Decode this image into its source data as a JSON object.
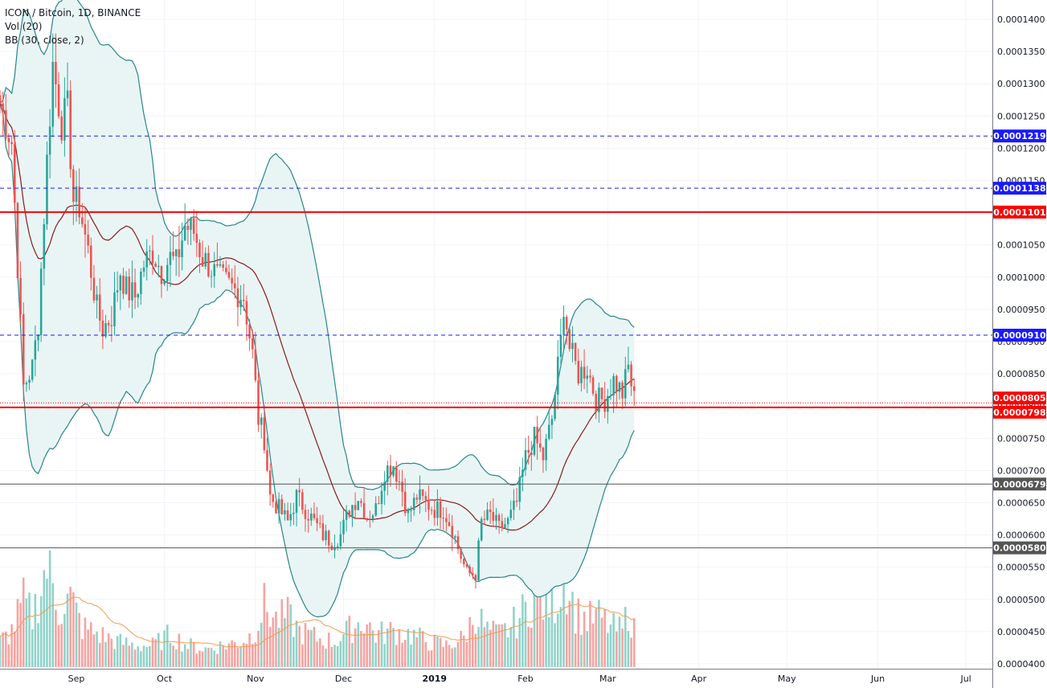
{
  "legend": {
    "title": "ICON / Bitcoin, 1D, BINANCE",
    "volume": "Vol (20)",
    "bollinger": "BB (30, close, 2)"
  },
  "colors": {
    "up": "#26a69a",
    "down": "#ef5350",
    "bb_band": "#26868a",
    "bb_basis": "#8b1a1a",
    "bb_fill": "#e9f5f5",
    "vol_up": "#8fd3c9",
    "vol_down": "#f6a3a0",
    "vol_ma": "#f39c4a",
    "blue_level": "#1a1aff",
    "red_level": "#ff0000",
    "gray_level": "#555555",
    "grid": "#f0f3fa"
  },
  "chart_data": {
    "type": "candlestick",
    "title": "ICON / Bitcoin, 1D, BINANCE",
    "ylim": [
      4e-05,
      0.000142
    ],
    "y_ticks": [
      "0.0001400",
      "0.0001350",
      "0.0001300",
      "0.0001250",
      "0.0001200",
      "0.0001150",
      "0.0001100",
      "0.0001050",
      "0.0001000",
      "0.0000950",
      "0.0000900",
      "0.0000850",
      "0.0000800",
      "0.0000750",
      "0.0000700",
      "0.0000650",
      "0.0000600",
      "0.0000550",
      "0.0000500",
      "0.0000450",
      "0.0000400"
    ],
    "y_tick_values": [
      0.00014,
      0.000135,
      0.00013,
      0.000125,
      0.00012,
      0.000115,
      0.00011,
      0.000105,
      0.0001,
      9.5e-05,
      9e-05,
      8.5e-05,
      8e-05,
      7.5e-05,
      7e-05,
      6.5e-05,
      6e-05,
      5.5e-05,
      5e-05,
      4.5e-05,
      4e-05
    ],
    "x_ticks": [
      "Sep",
      "Oct",
      "Nov",
      "Dec",
      "2019",
      "Feb",
      "Mar",
      "Apr",
      "May",
      "Jun",
      "Jul"
    ],
    "x_tick_days": [
      18,
      48,
      79,
      109,
      140,
      171,
      199,
      230,
      260,
      291,
      321
    ],
    "x_range_days": [
      -8,
      330
    ],
    "price_levels": [
      {
        "label": "0.0001219",
        "value": 0.0001219,
        "style": "blue-dashed"
      },
      {
        "label": "0.0001138",
        "value": 0.0001138,
        "style": "blue-dashed"
      },
      {
        "label": "0.0001101",
        "value": 0.0001101,
        "style": "red-solid"
      },
      {
        "label": "0.0000910",
        "value": 9.1e-05,
        "style": "blue-dashed"
      },
      {
        "label": "0.0000805",
        "value": 8.05e-05,
        "style": "red-dotted"
      },
      {
        "label": "0.0000798",
        "value": 7.98e-05,
        "style": "red-solid"
      },
      {
        "label": "0.0000679",
        "value": 6.79e-05,
        "style": "gray-solid"
      },
      {
        "label": "0.0000580",
        "value": 5.8e-05,
        "style": "gray-solid"
      }
    ],
    "close_anchors": [
      [
        -8,
        0.000127
      ],
      [
        -4,
        0.000121
      ],
      [
        0,
        8.3e-05
      ],
      [
        3,
        8.6e-05
      ],
      [
        5,
        9.3e-05
      ],
      [
        8,
        0.000118
      ],
      [
        10,
        0.000133
      ],
      [
        13,
        0.000124
      ],
      [
        15,
        0.000126
      ],
      [
        17,
        0.000112
      ],
      [
        19,
        0.000111
      ],
      [
        22,
        0.000104
      ],
      [
        25,
        9.5e-05
      ],
      [
        27,
        9.2e-05
      ],
      [
        30,
        9.4e-05
      ],
      [
        33,
        0.000101
      ],
      [
        35,
        9.8e-05
      ],
      [
        38,
        9.7e-05
      ],
      [
        41,
        0.000102
      ],
      [
        44,
        0.000104
      ],
      [
        47,
        0.000101
      ],
      [
        50,
        0.000103
      ],
      [
        52,
        0.000102
      ],
      [
        55,
        0.000108
      ],
      [
        58,
        0.000107
      ],
      [
        61,
        0.000103
      ],
      [
        63,
        0.000102
      ],
      [
        66,
        0.0001
      ],
      [
        69,
        9.9e-05
      ],
      [
        72,
        9.8e-05
      ],
      [
        75,
        9.7e-05
      ],
      [
        78,
        8.8e-05
      ],
      [
        80,
        7.8e-05
      ],
      [
        82,
        7.5e-05
      ],
      [
        84,
        6.6e-05
      ],
      [
        87,
        6.4e-05
      ],
      [
        90,
        6.2e-05
      ],
      [
        93,
        6.6e-05
      ],
      [
        96,
        6.4e-05
      ],
      [
        99,
        6.2e-05
      ],
      [
        102,
        6e-05
      ],
      [
        105,
        5.9e-05
      ],
      [
        108,
        6e-05
      ],
      [
        111,
        6.4e-05
      ],
      [
        114,
        6.6e-05
      ],
      [
        117,
        6.3e-05
      ],
      [
        120,
        6.4e-05
      ],
      [
        123,
        7e-05
      ],
      [
        126,
        7.1e-05
      ],
      [
        129,
        6.7e-05
      ],
      [
        131,
        6.3e-05
      ],
      [
        134,
        6.6e-05
      ],
      [
        137,
        6.5e-05
      ],
      [
        140,
        6.4e-05
      ],
      [
        143,
        6.4e-05
      ],
      [
        146,
        6.1e-05
      ],
      [
        148,
        5.8e-05
      ],
      [
        151,
        5.4e-05
      ],
      [
        154,
        5.4e-05
      ],
      [
        156,
        6.2e-05
      ],
      [
        159,
        6.3e-05
      ],
      [
        162,
        6.1e-05
      ],
      [
        165,
        6.2e-05
      ],
      [
        168,
        6.5e-05
      ],
      [
        171,
        7.2e-05
      ],
      [
        174,
        7.5e-05
      ],
      [
        177,
        7.2e-05
      ],
      [
        180,
        7.8e-05
      ],
      [
        183,
        9e-05
      ],
      [
        184,
        9.6e-05
      ],
      [
        186,
        8.9e-05
      ],
      [
        189,
        8.5e-05
      ],
      [
        192,
        8.6e-05
      ],
      [
        195,
        8.1e-05
      ],
      [
        198,
        8.1e-05
      ],
      [
        201,
        8.4e-05
      ],
      [
        204,
        8.2e-05
      ],
      [
        206,
        8.6e-05
      ],
      [
        208,
        8.1e-05
      ]
    ],
    "volume_anchors": [
      [
        -8,
        0.35
      ],
      [
        -4,
        0.5
      ],
      [
        0,
        0.9
      ],
      [
        3,
        0.7
      ],
      [
        8,
        1.4
      ],
      [
        12,
        0.8
      ],
      [
        16,
        0.95
      ],
      [
        20,
        0.55
      ],
      [
        26,
        0.45
      ],
      [
        32,
        0.35
      ],
      [
        38,
        0.3
      ],
      [
        44,
        0.3
      ],
      [
        50,
        0.45
      ],
      [
        56,
        0.3
      ],
      [
        62,
        0.25
      ],
      [
        68,
        0.3
      ],
      [
        74,
        0.35
      ],
      [
        78,
        0.45
      ],
      [
        82,
        0.85
      ],
      [
        86,
        0.65
      ],
      [
        90,
        0.7
      ],
      [
        94,
        0.5
      ],
      [
        100,
        0.4
      ],
      [
        106,
        0.35
      ],
      [
        112,
        0.55
      ],
      [
        116,
        0.65
      ],
      [
        120,
        0.45
      ],
      [
        126,
        0.5
      ],
      [
        132,
        0.45
      ],
      [
        138,
        0.35
      ],
      [
        144,
        0.3
      ],
      [
        150,
        0.4
      ],
      [
        154,
        0.75
      ],
      [
        158,
        0.5
      ],
      [
        162,
        0.45
      ],
      [
        166,
        0.55
      ],
      [
        170,
        0.75
      ],
      [
        174,
        0.95
      ],
      [
        178,
        0.85
      ],
      [
        182,
        0.95
      ],
      [
        184,
        1.35
      ],
      [
        188,
        0.75
      ],
      [
        192,
        0.65
      ],
      [
        196,
        0.7
      ],
      [
        200,
        0.55
      ],
      [
        204,
        0.5
      ],
      [
        206,
        0.8
      ],
      [
        208,
        0.5
      ]
    ]
  }
}
